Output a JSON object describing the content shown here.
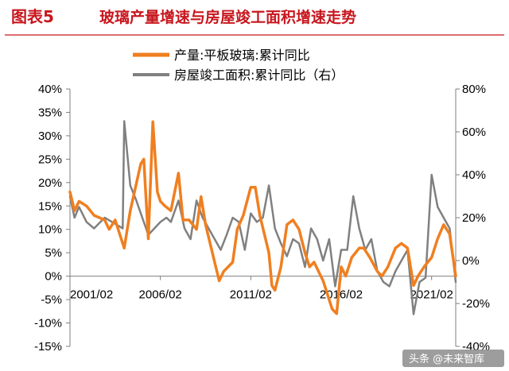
{
  "header": {
    "figure_number": "图表5",
    "title": "玻璃产量增速与房屋竣工面积增速走势"
  },
  "watermark": {
    "text": "头条 @未来智库"
  },
  "colors": {
    "title": "#c8161d",
    "title_rule": "#c8161d",
    "series_production": "#f07f20",
    "series_completion": "#808080",
    "axis": "#7f7f7f",
    "background": "#ffffff"
  },
  "chart_data": {
    "type": "line",
    "title": "玻璃产量增速与房屋竣工面积增速走势",
    "xlabel": "",
    "ylabel": "",
    "x_start": "2001/02",
    "x_end": "2022/06",
    "x_ticks": [
      "2001/02",
      "2006/02",
      "2011/02",
      "2016/02",
      "2021/02"
    ],
    "y_left": {
      "range": [
        -15,
        40
      ],
      "ticks": [
        -15,
        -10,
        -5,
        0,
        5,
        10,
        15,
        20,
        25,
        30,
        35,
        40
      ],
      "tick_labels": [
        "-15%",
        "-10%",
        "-5%",
        "0%",
        "5%",
        "10%",
        "15%",
        "20%",
        "25%",
        "30%",
        "35%",
        "40%"
      ]
    },
    "y_right": {
      "range": [
        -40,
        80
      ],
      "ticks": [
        -40,
        -20,
        0,
        20,
        40,
        60,
        80
      ],
      "tick_labels": [
        "-40%",
        "-20%",
        "0%",
        "20%",
        "40%",
        "60%",
        "80%"
      ]
    },
    "grid": false,
    "legend_position": "top-center",
    "series": [
      {
        "name": "产量:平板玻璃:累计同比",
        "axis": "left",
        "color": "#f07f20",
        "points": [
          [
            "2001/02",
            18
          ],
          [
            "2001/05",
            14
          ],
          [
            "2001/08",
            16
          ],
          [
            "2002/01",
            15
          ],
          [
            "2002/06",
            13
          ],
          [
            "2003/01",
            12
          ],
          [
            "2003/04",
            10
          ],
          [
            "2003/08",
            12
          ],
          [
            "2004/02",
            6
          ],
          [
            "2004/06",
            14
          ],
          [
            "2005/01",
            24
          ],
          [
            "2005/03",
            25
          ],
          [
            "2005/06",
            8
          ],
          [
            "2005/09",
            33
          ],
          [
            "2005/12",
            18
          ],
          [
            "2006/02",
            16
          ],
          [
            "2006/05",
            15
          ],
          [
            "2006/09",
            14
          ],
          [
            "2007/02",
            22
          ],
          [
            "2007/05",
            12
          ],
          [
            "2007/09",
            12
          ],
          [
            "2008/02",
            10
          ],
          [
            "2008/05",
            17
          ],
          [
            "2008/08",
            11
          ],
          [
            "2009/02",
            3
          ],
          [
            "2009/05",
            -1
          ],
          [
            "2009/08",
            1
          ],
          [
            "2010/02",
            3
          ],
          [
            "2010/05",
            10
          ],
          [
            "2010/09",
            13
          ],
          [
            "2011/02",
            19
          ],
          [
            "2011/05",
            19
          ],
          [
            "2011/08",
            13
          ],
          [
            "2012/02",
            5
          ],
          [
            "2012/04",
            -2
          ],
          [
            "2012/06",
            -3
          ],
          [
            "2012/10",
            2
          ],
          [
            "2013/02",
            11
          ],
          [
            "2013/06",
            12
          ],
          [
            "2013/10",
            10
          ],
          [
            "2014/02",
            5
          ],
          [
            "2014/05",
            2
          ],
          [
            "2014/08",
            3
          ],
          [
            "2015/02",
            -1
          ],
          [
            "2015/05",
            -4
          ],
          [
            "2015/08",
            -7
          ],
          [
            "2015/11",
            -8
          ],
          [
            "2016/02",
            2
          ],
          [
            "2016/05",
            0
          ],
          [
            "2016/09",
            4
          ],
          [
            "2017/02",
            6
          ],
          [
            "2017/05",
            6
          ],
          [
            "2017/09",
            4
          ],
          [
            "2018/02",
            1
          ],
          [
            "2018/05",
            0
          ],
          [
            "2018/09",
            2
          ],
          [
            "2019/02",
            6
          ],
          [
            "2019/06",
            7
          ],
          [
            "2019/10",
            6
          ],
          [
            "2020/02",
            -2
          ],
          [
            "2020/05",
            0
          ],
          [
            "2020/09",
            2
          ],
          [
            "2021/02",
            4
          ],
          [
            "2021/06",
            8
          ],
          [
            "2021/10",
            11
          ],
          [
            "2022/02",
            9
          ],
          [
            "2022/06",
            0
          ]
        ]
      },
      {
        "name": "房屋竣工面积:累计同比（右）",
        "axis": "right",
        "color": "#808080",
        "points": [
          [
            "2001/02",
            30
          ],
          [
            "2001/05",
            20
          ],
          [
            "2001/08",
            25
          ],
          [
            "2002/01",
            18
          ],
          [
            "2002/06",
            15
          ],
          [
            "2003/01",
            20
          ],
          [
            "2003/06",
            18
          ],
          [
            "2004/01",
            15
          ],
          [
            "2004/02",
            65
          ],
          [
            "2004/06",
            35
          ],
          [
            "2004/10",
            28
          ],
          [
            "2005/02",
            20
          ],
          [
            "2005/06",
            12
          ],
          [
            "2005/10",
            15
          ],
          [
            "2006/02",
            18
          ],
          [
            "2006/06",
            20
          ],
          [
            "2006/09",
            18
          ],
          [
            "2007/02",
            28
          ],
          [
            "2007/06",
            15
          ],
          [
            "2007/10",
            10
          ],
          [
            "2008/02",
            28
          ],
          [
            "2008/06",
            20
          ],
          [
            "2008/10",
            15
          ],
          [
            "2009/02",
            10
          ],
          [
            "2009/06",
            5
          ],
          [
            "2009/10",
            12
          ],
          [
            "2010/02",
            20
          ],
          [
            "2010/06",
            18
          ],
          [
            "2010/10",
            5
          ],
          [
            "2011/02",
            22
          ],
          [
            "2011/06",
            18
          ],
          [
            "2011/10",
            20
          ],
          [
            "2012/02",
            35
          ],
          [
            "2012/06",
            15
          ],
          [
            "2012/10",
            8
          ],
          [
            "2013/02",
            2
          ],
          [
            "2013/06",
            10
          ],
          [
            "2013/10",
            8
          ],
          [
            "2014/02",
            -3
          ],
          [
            "2014/06",
            15
          ],
          [
            "2014/10",
            10
          ],
          [
            "2015/02",
            0
          ],
          [
            "2015/06",
            10
          ],
          [
            "2015/10",
            -12
          ],
          [
            "2016/02",
            5
          ],
          [
            "2016/06",
            5
          ],
          [
            "2016/10",
            30
          ],
          [
            "2017/02",
            15
          ],
          [
            "2017/06",
            5
          ],
          [
            "2017/10",
            10
          ],
          [
            "2018/02",
            -5
          ],
          [
            "2018/06",
            -10
          ],
          [
            "2018/10",
            -12
          ],
          [
            "2019/02",
            -5
          ],
          [
            "2019/06",
            0
          ],
          [
            "2019/10",
            5
          ],
          [
            "2020/02",
            -25
          ],
          [
            "2020/06",
            -10
          ],
          [
            "2020/10",
            -8
          ],
          [
            "2021/02",
            40
          ],
          [
            "2021/06",
            25
          ],
          [
            "2021/10",
            20
          ],
          [
            "2022/02",
            15
          ],
          [
            "2022/06",
            -10
          ]
        ]
      }
    ]
  }
}
